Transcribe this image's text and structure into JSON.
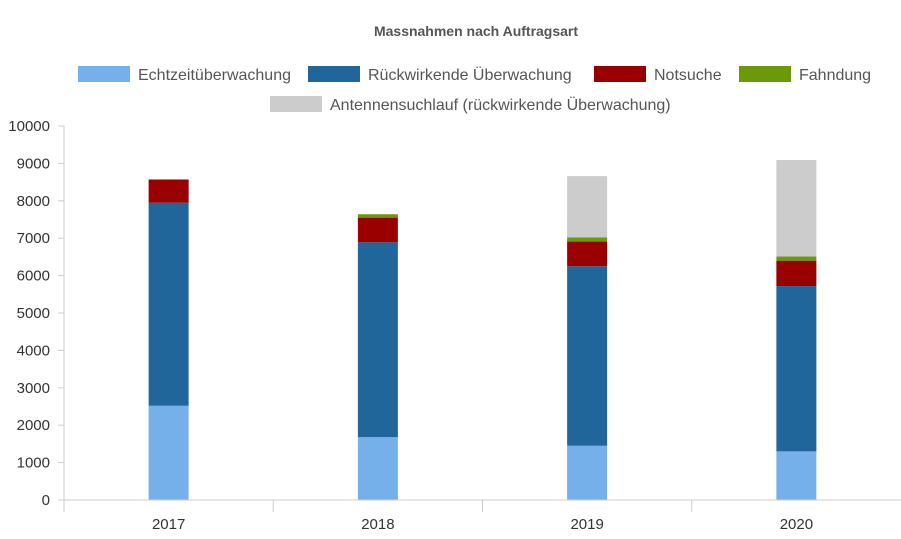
{
  "chart_data": {
    "type": "bar",
    "stacked": true,
    "title": "Massnahmen nach Auftragsart",
    "xlabel": "",
    "ylabel": "",
    "categories": [
      "2017",
      "2018",
      "2019",
      "2020"
    ],
    "ylim": [
      0,
      10000
    ],
    "yticks": [
      0,
      1000,
      2000,
      3000,
      4000,
      5000,
      6000,
      7000,
      8000,
      9000,
      10000
    ],
    "grid": false,
    "legend_position": "top",
    "series": [
      {
        "name": "Echtzeitüberwachung",
        "color": "#76b0ea",
        "values": [
          2520,
          1680,
          1450,
          1300
        ]
      },
      {
        "name": "Rückwirkende Überwachung",
        "color": "#21669b",
        "values": [
          5430,
          5210,
          4800,
          4420
        ]
      },
      {
        "name": "Notsuche",
        "color": "#990000",
        "values": [
          620,
          660,
          660,
          680
        ]
      },
      {
        "name": "Fahndung",
        "color": "#6a9a0a",
        "values": [
          0,
          90,
          110,
          110
        ]
      },
      {
        "name": "Antennensuchlauf (rückwirkende Überwachung)",
        "color": "#cccccc",
        "values": [
          0,
          0,
          1640,
          2580
        ]
      }
    ]
  }
}
